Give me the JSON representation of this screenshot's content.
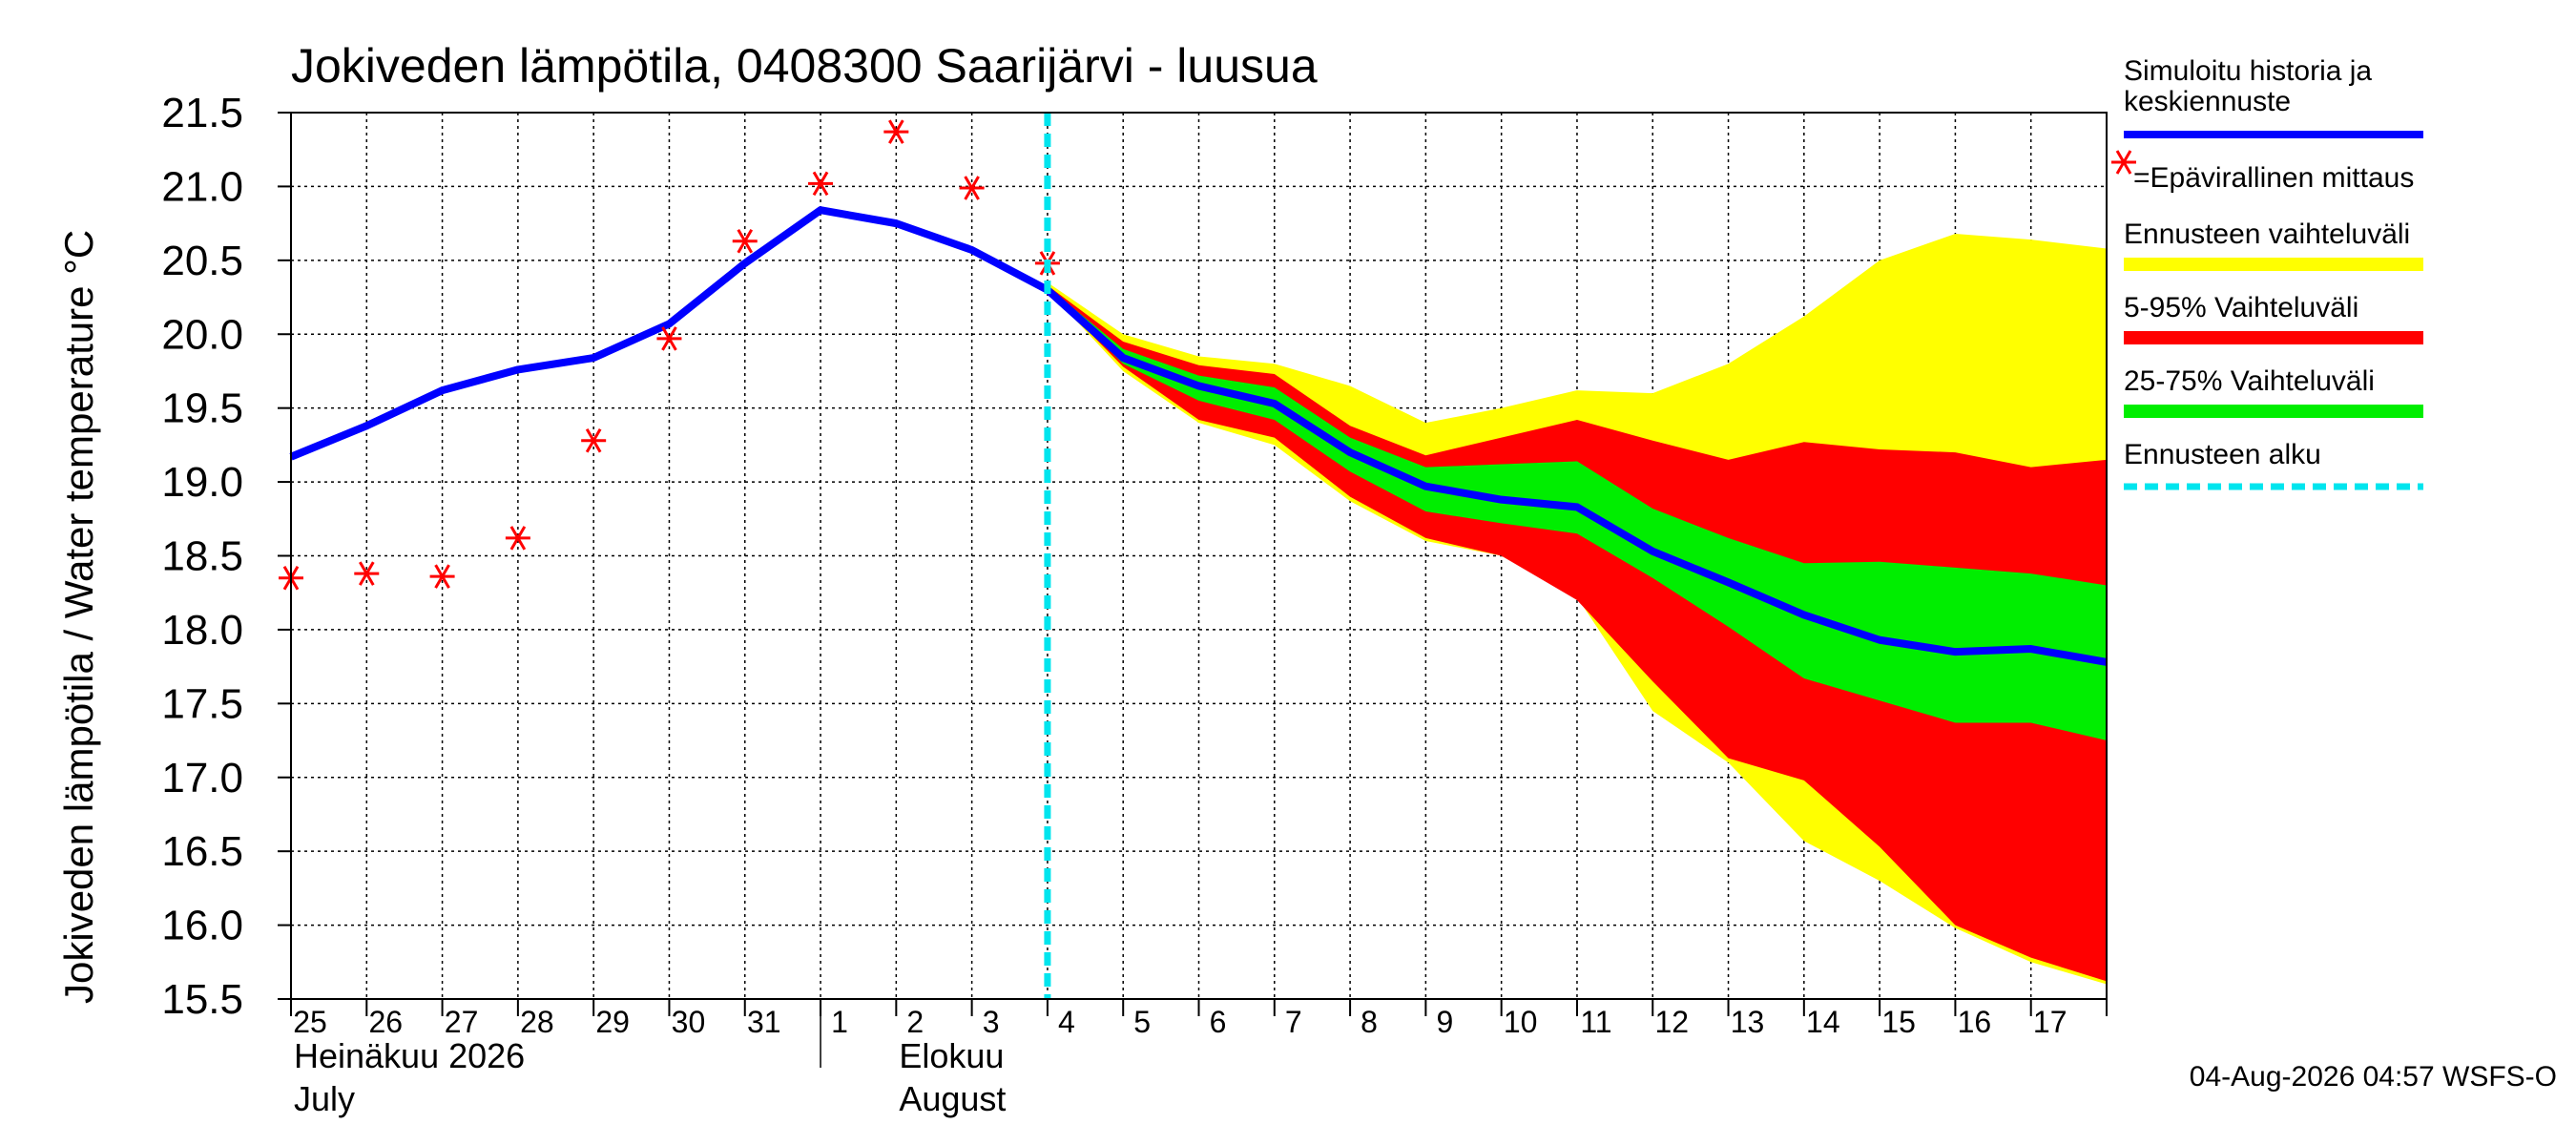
{
  "chart_data": {
    "type": "line",
    "title": "Jokiveden lämpötila, 0408300 Saarijärvi - luusua",
    "ylabel": "Jokiveden lämpötila / Water temperature   °C",
    "ylim": [
      15.5,
      21.5
    ],
    "yticks": [
      "15.5",
      "16.0",
      "16.5",
      "17.0",
      "17.5",
      "18.0",
      "18.5",
      "19.0",
      "19.5",
      "20.0",
      "20.5",
      "21.0",
      "21.5"
    ],
    "x_day_labels": [
      "25",
      "26",
      "27",
      "28",
      "29",
      "30",
      "31",
      "1",
      "2",
      "3",
      "4",
      "5",
      "6",
      "7",
      "8",
      "9",
      "10",
      "11",
      "12",
      "13",
      "14",
      "15",
      "16",
      "17"
    ],
    "month_labels": [
      {
        "line1": "Heinäkuu  2026",
        "line2": "July",
        "at_day": 25
      },
      {
        "line1": "Elokuu",
        "line2": "August",
        "at_day": 33
      }
    ],
    "x_start_day": 25,
    "x_end_day": 49,
    "forecast_start_day": 35,
    "month_boundary_day": 32,
    "grid": true,
    "colors": {
      "median": "#0000ff",
      "observed": "#ff0000",
      "range_full": "#ffff00",
      "range_5_95": "#ff0000",
      "range_25_75": "#00ee00",
      "forecast_start": "#00e5ee"
    },
    "series": [
      {
        "name": "Simuloitu historia ja keskiennuste",
        "x": [
          25,
          26,
          27,
          28,
          29,
          30,
          31,
          32,
          33,
          34,
          35,
          36,
          37,
          38,
          39,
          40,
          41,
          42,
          43,
          44,
          45,
          46,
          47,
          48,
          49
        ],
        "values": [
          19.17,
          19.38,
          19.62,
          19.76,
          19.84,
          20.07,
          20.48,
          20.84,
          20.75,
          20.57,
          20.3,
          19.84,
          19.65,
          19.53,
          19.2,
          18.97,
          18.88,
          18.83,
          18.53,
          18.32,
          18.1,
          17.93,
          17.85,
          17.87,
          17.78
        ]
      },
      {
        "name": "=Epävirallinen mittaus",
        "x": [
          25,
          26,
          27,
          28,
          29,
          30,
          31,
          32,
          33,
          34,
          35
        ],
        "values": [
          18.35,
          18.38,
          18.36,
          18.62,
          19.28,
          19.97,
          20.63,
          21.02,
          21.37,
          20.99,
          20.48
        ]
      }
    ],
    "bands": [
      {
        "name": "Ennusteen vaihteluväli",
        "x": [
          35,
          36,
          37,
          38,
          39,
          40,
          41,
          42,
          43,
          44,
          45,
          46,
          47,
          48,
          49
        ],
        "upper": [
          20.35,
          20.0,
          19.85,
          19.8,
          19.65,
          19.4,
          19.5,
          19.62,
          19.6,
          19.8,
          20.12,
          20.5,
          20.68,
          20.64,
          20.58
        ],
        "lower": [
          20.3,
          19.75,
          19.4,
          19.25,
          18.87,
          18.6,
          18.5,
          18.22,
          17.45,
          17.1,
          16.57,
          16.3,
          15.98,
          15.75,
          15.6
        ]
      },
      {
        "name": "5-95% Vaihteluväli",
        "x": [
          35,
          36,
          37,
          38,
          39,
          40,
          41,
          42,
          43,
          44,
          45,
          46,
          47,
          48,
          49
        ],
        "upper": [
          20.33,
          19.95,
          19.79,
          19.73,
          19.38,
          19.18,
          19.3,
          19.42,
          19.28,
          19.15,
          19.27,
          19.22,
          19.2,
          19.1,
          19.15
        ],
        "lower": [
          20.3,
          19.78,
          19.42,
          19.3,
          18.9,
          18.62,
          18.5,
          18.2,
          17.65,
          17.13,
          16.98,
          16.53,
          16.0,
          15.78,
          15.62
        ]
      },
      {
        "name": "25-75% Vaihteluväli",
        "x": [
          35,
          36,
          37,
          38,
          39,
          40,
          41,
          42,
          43,
          44,
          45,
          46,
          47,
          48,
          49
        ],
        "upper": [
          20.32,
          19.9,
          19.72,
          19.64,
          19.3,
          19.1,
          19.12,
          19.14,
          18.82,
          18.62,
          18.45,
          18.46,
          18.42,
          18.38,
          18.3
        ],
        "lower": [
          20.3,
          19.8,
          19.55,
          19.42,
          19.07,
          18.8,
          18.72,
          18.65,
          18.35,
          18.02,
          17.67,
          17.52,
          17.37,
          17.37,
          17.25
        ]
      }
    ]
  },
  "legend": {
    "median_line1": "Simuloitu historia ja",
    "median_line2": "keskiennuste",
    "observed": "=Epävirallinen mittaus",
    "range_full": "Ennusteen vaihteluväli",
    "range_5_95": "5-95% Vaihteluväli",
    "range_25_75": "25-75% Vaihteluväli",
    "forecast_start": "Ennusteen alku"
  },
  "footer": "04-Aug-2026 04:57 WSFS-O"
}
